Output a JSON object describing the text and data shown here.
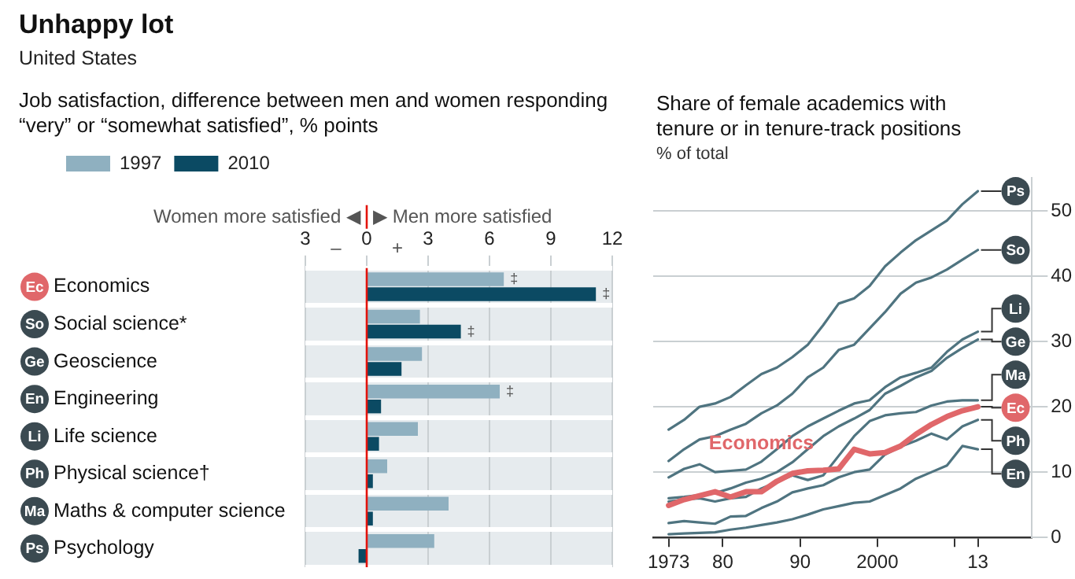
{
  "chart_data": [
    {
      "type": "bar",
      "orientation": "horizontal",
      "title": "Unhappy lot",
      "subtitle": "United States",
      "xlabel": "Job satisfaction, difference between men and women responding “very” or “somewhat satisfied”, % points",
      "categories": [
        "Economics",
        "Social science*",
        "Geoscience",
        "Engineering",
        "Life science",
        "Physical science†",
        "Maths & computer science",
        "Psychology"
      ],
      "series": [
        {
          "name": "1997",
          "color": "#8fb0c0",
          "values": [
            6.7,
            2.6,
            2.7,
            6.5,
            2.5,
            1.0,
            4.0,
            3.3
          ],
          "value_labels": [
            "‡",
            null,
            null,
            "‡",
            null,
            null,
            null,
            null
          ]
        },
        {
          "name": "2010",
          "color": "#0b4a63",
          "values": [
            11.2,
            4.6,
            1.7,
            0.7,
            0.6,
            0.3,
            0.3,
            -0.4
          ],
          "value_labels": [
            "‡",
            "‡",
            null,
            null,
            null,
            null,
            null,
            null
          ]
        }
      ],
      "xlim": [
        -3,
        12
      ],
      "xticks": [
        {
          "value": -3,
          "label": "3"
        },
        0,
        3,
        6,
        9,
        12
      ],
      "grid": "x",
      "legend": "top left",
      "ref_lines": [
        {
          "axis": "x",
          "value": 0,
          "color": "#e3120b"
        }
      ],
      "annotations": [
        "Women more satisfied ◀",
        "▶ Men more satisfied",
        "–",
        "+",
        "Ec",
        "So",
        "Ge",
        "En",
        "Li",
        "Ph",
        "Ma",
        "Ps"
      ]
    },
    {
      "type": "line",
      "title": "Share of female academics with tenure or in tenure-track positions",
      "ylabel": "% of total",
      "x": [
        1973,
        1975,
        1977,
        1979,
        1981,
        1983,
        1985,
        1987,
        1989,
        1991,
        1993,
        1995,
        1997,
        1999,
        2001,
        2003,
        2005,
        2007,
        2009,
        2011,
        2013
      ],
      "series": [
        {
          "color": "#4f7480",
          "values": [
            16.5,
            18,
            20,
            20.5,
            21.5,
            23.3,
            25,
            26,
            27.6,
            29.5,
            32.5,
            35.8,
            36.6,
            38.5,
            41.5,
            43.6,
            45.5,
            47,
            48.5,
            51,
            53
          ]
        },
        {
          "color": "#4f7480",
          "values": [
            11.7,
            13.5,
            15,
            15.5,
            16.5,
            17.4,
            19,
            20.2,
            22,
            24.5,
            26,
            28.7,
            29.5,
            32,
            34.5,
            37.3,
            39,
            39.8,
            41,
            42.5,
            44
          ]
        },
        {
          "color": "#4f7480",
          "values": [
            9.2,
            10.5,
            11.2,
            10,
            10.2,
            10.4,
            11.6,
            13.5,
            15.5,
            17,
            18.2,
            19.4,
            20.5,
            21,
            23,
            24.5,
            25.2,
            26,
            28.4,
            30.3,
            31.5
          ]
        },
        {
          "color": "#4f7480",
          "values": [
            6,
            6.2,
            6.5,
            6.8,
            7.5,
            8.4,
            9,
            10,
            11.5,
            13.5,
            15.5,
            17,
            18.2,
            19.5,
            22,
            23.2,
            24.5,
            25.5,
            27.5,
            29,
            30.3
          ]
        },
        {
          "color": "#4f7480",
          "values": [
            5.5,
            5.8,
            6,
            5.5,
            6,
            6.2,
            7.5,
            8.5,
            9.5,
            8.8,
            9.5,
            12.5,
            15.5,
            17.8,
            18.7,
            19,
            19.2,
            20.2,
            20.8,
            21,
            21
          ]
        },
        {
          "name": "Economics",
          "color": "#e0676a",
          "values": [
            4.9,
            5.8,
            6.4,
            7,
            6.2,
            7,
            7,
            8.6,
            9.8,
            10.2,
            10.3,
            10.5,
            13.5,
            12.8,
            13,
            14,
            15.8,
            17.3,
            18.5,
            19.4,
            20
          ]
        },
        {
          "color": "#4f7480",
          "values": [
            2.2,
            2.5,
            2.3,
            2.1,
            3.2,
            3.3,
            4.5,
            5.5,
            6.9,
            7.5,
            8,
            9.2,
            10,
            10.4,
            12.7,
            13.9,
            14.8,
            15.9,
            15,
            17,
            18
          ]
        },
        {
          "color": "#4f7480",
          "values": [
            0.5,
            0.6,
            0.7,
            0.8,
            1.2,
            1.5,
            1.9,
            2.3,
            2.8,
            3.5,
            4.3,
            4.8,
            5.3,
            5.5,
            6.5,
            7.5,
            9,
            10,
            11,
            14,
            13.5
          ]
        }
      ],
      "xlim": [
        1971,
        2020
      ],
      "xticks": [
        {
          "value": 1973,
          "label": "1973"
        },
        {
          "value": 1980,
          "label": "80"
        },
        {
          "value": 1990,
          "label": "90"
        },
        2000,
        {
          "value": 2010,
          "label": null
        },
        {
          "value": 2013,
          "label": "13"
        }
      ],
      "ylim": [
        0,
        55
      ],
      "yticks": [
        0,
        10,
        20,
        30,
        40,
        50
      ],
      "grid": "y",
      "marker": "none",
      "annotations": [
        "Ps",
        "So",
        "Li",
        "Ge",
        "Ma",
        "Ec",
        "Ph",
        "En"
      ]
    }
  ]
}
